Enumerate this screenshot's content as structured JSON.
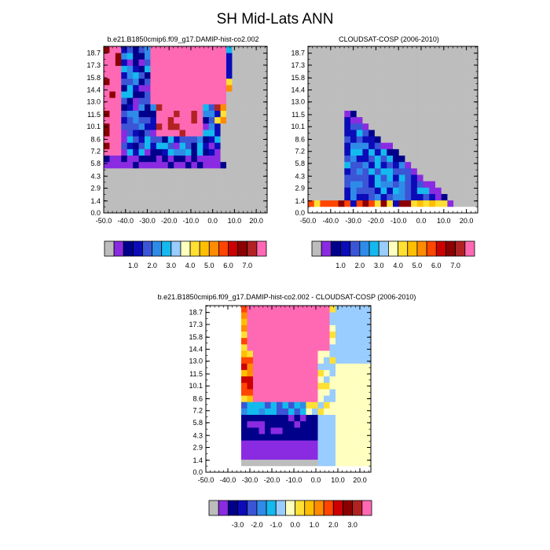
{
  "figure": {
    "title": "SH Mid-Lats ANN"
  },
  "colors": {
    "missing": "#bdbdbd",
    "abs_palette": [
      "#bdbdbd",
      "#8a2be2",
      "#00008b",
      "#0b0bb8",
      "#3b55d6",
      "#2f8be8",
      "#14b9ee",
      "#99ccff",
      "#ffffbf",
      "#ffe033",
      "#ffbf00",
      "#ff8c00",
      "#ff4500",
      "#cc0000",
      "#8b0000",
      "#b22222",
      "#ff69b4"
    ],
    "diff_palette": [
      "#bdbdbd",
      "#8a2be2",
      "#00008b",
      "#0b0bb8",
      "#3b55d6",
      "#2f8be8",
      "#14b9ee",
      "#99ccff",
      "#ffffbf",
      "#ffe033",
      "#ffbf00",
      "#ff8c00",
      "#ff4500",
      "#cc0000",
      "#8b0000",
      "#b22222",
      "#ff69b4"
    ]
  },
  "chart_data": [
    {
      "type": "heatmap",
      "title": "b.e21.B1850cmip6.f09_g17.DAMIP-hist-co2.002",
      "x_ticks": [
        "-50.0",
        "-40.0",
        "-30.0",
        "-20.0",
        "-10.0",
        "0.0",
        "10.0",
        "20.0"
      ],
      "y_ticks": [
        "0.0",
        "1.4",
        "2.9",
        "4.3",
        "5.8",
        "7.2",
        "8.6",
        "10.1",
        "11.5",
        "13.0",
        "14.4",
        "15.8",
        "17.3",
        "18.7"
      ],
      "xlim": [
        -50,
        25
      ],
      "ylim": [
        0,
        19.5
      ],
      "colorbar_labels": [
        "1.0",
        "2.0",
        "3.0",
        "4.0",
        "5.0",
        "6.0",
        "7.0"
      ],
      "value_scale": "abs"
    },
    {
      "type": "heatmap",
      "title": "CLOUDSAT-COSP (2006-2010)",
      "x_ticks": [
        "-50.0",
        "-40.0",
        "-30.0",
        "-20.0",
        "-10.0",
        "0.0",
        "10.0",
        "20.0"
      ],
      "y_ticks": [
        "0.0",
        "1.4",
        "2.9",
        "4.3",
        "5.8",
        "7.2",
        "8.6",
        "10.1",
        "11.5",
        "13.0",
        "14.4",
        "15.8",
        "17.3",
        "18.7"
      ],
      "xlim": [
        -50,
        25
      ],
      "ylim": [
        0,
        19.5
      ],
      "colorbar_labels": [
        "1.0",
        "2.0",
        "3.0",
        "4.0",
        "5.0",
        "6.0",
        "7.0"
      ],
      "value_scale": "abs"
    },
    {
      "type": "heatmap",
      "title": "b.e21.B1850cmip6.f09_g17.DAMIP-hist-co2.002 - CLOUDSAT-COSP (2006-2010)",
      "x_ticks": [
        "-50.0",
        "-40.0",
        "-30.0",
        "-20.0",
        "-10.0",
        "0.0",
        "10.0",
        "20.0"
      ],
      "y_ticks": [
        "0.0",
        "1.4",
        "2.9",
        "4.3",
        "5.8",
        "7.2",
        "8.6",
        "10.1",
        "11.5",
        "13.0",
        "14.4",
        "15.8",
        "17.3",
        "18.7"
      ],
      "xlim": [
        -50,
        25
      ],
      "ylim": [
        0,
        19.5
      ],
      "colorbar_labels": [
        "-3.0",
        "-2.0",
        "-1.0",
        "0.0",
        "1.0",
        "2.0",
        "3.0"
      ],
      "value_scale": "diff"
    }
  ]
}
